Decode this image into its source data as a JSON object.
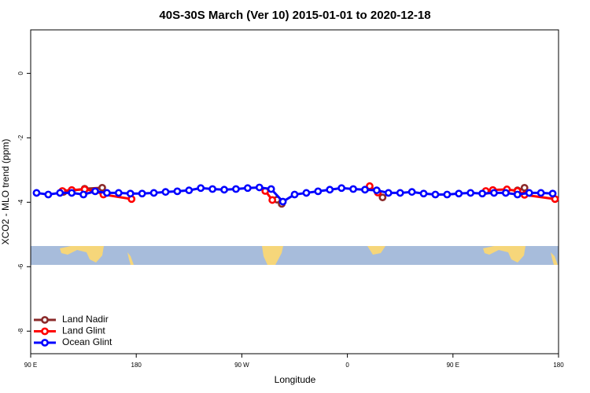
{
  "chart_data": {
    "type": "line",
    "title": "40S-30S March (Ver 10)   2015-01-01 to 2020-12-18",
    "xlabel": "Longitude",
    "ylabel": "XCO2 - MLO trend (ppm)",
    "xlim": [
      90,
      540
    ],
    "ylim": [
      -8.7,
      1.35
    ],
    "xticks": [
      {
        "value": 90,
        "label": "90 E"
      },
      {
        "value": 180,
        "label": "180"
      },
      {
        "value": 270,
        "label": "90 W"
      },
      {
        "value": 360,
        "label": "0"
      },
      {
        "value": 450,
        "label": "90 E"
      },
      {
        "value": 540,
        "label": "180"
      }
    ],
    "yticks": [
      -8,
      -6,
      -4,
      -2,
      0
    ],
    "legend": "bottom-left",
    "series": [
      {
        "name": "Land Nadir",
        "color": "#8b2a2a",
        "x": [
          118,
          136,
          151,
          null,
          300,
          304,
          null,
          390,
          null,
          505,
          511
        ],
        "values": [
          -3.68,
          -3.58,
          -3.55,
          null,
          -3.92,
          -4.05,
          null,
          -3.85,
          null,
          -3.63,
          -3.55
        ]
      },
      {
        "name": "Land Glint",
        "color": "#ff0000",
        "x": [
          117,
          125,
          136,
          145,
          152,
          176,
          null,
          290,
          296,
          null,
          379,
          386,
          null,
          478,
          484,
          496,
          505,
          511,
          537
        ],
        "values": [
          -3.65,
          -3.62,
          -3.6,
          -3.65,
          -3.76,
          -3.9,
          null,
          -3.65,
          -3.93,
          null,
          -3.5,
          -3.7,
          null,
          -3.65,
          -3.62,
          -3.6,
          -3.65,
          -3.77,
          -3.9
        ]
      },
      {
        "name": "Ocean Glint",
        "color": "#0000ff",
        "x": [
          95,
          105,
          115,
          125,
          135,
          145,
          155,
          165,
          175,
          185,
          195,
          205,
          215,
          225,
          235,
          245,
          255,
          265,
          275,
          285,
          295,
          305,
          315,
          325,
          335,
          345,
          355,
          365,
          375,
          385,
          395,
          405,
          415,
          425,
          435,
          445,
          455,
          465,
          475,
          485,
          495,
          505,
          515,
          525,
          535
        ],
        "values": [
          -3.71,
          -3.76,
          -3.71,
          -3.71,
          -3.76,
          -3.66,
          -3.71,
          -3.71,
          -3.73,
          -3.73,
          -3.71,
          -3.68,
          -3.66,
          -3.63,
          -3.56,
          -3.59,
          -3.61,
          -3.59,
          -3.56,
          -3.54,
          -3.59,
          -3.98,
          -3.76,
          -3.71,
          -3.66,
          -3.61,
          -3.56,
          -3.59,
          -3.61,
          -3.63,
          -3.71,
          -3.71,
          -3.68,
          -3.73,
          -3.76,
          -3.76,
          -3.73,
          -3.71,
          -3.73,
          -3.71,
          -3.71,
          -3.76,
          -3.71,
          -3.71,
          -3.73
        ]
      }
    ]
  }
}
